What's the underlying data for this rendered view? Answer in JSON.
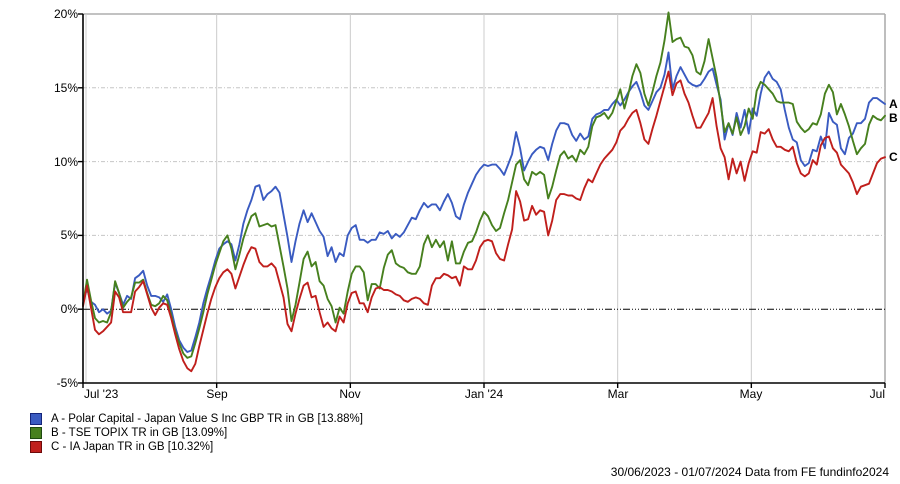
{
  "footer": {
    "text": "30/06/2023 - 01/07/2024 Data from FE fundinfo2024"
  },
  "chart_data": {
    "type": "line",
    "title": "",
    "date_range": {
      "start": "30/06/2023",
      "end": "01/07/2024"
    },
    "sampling": "201 uniform samples per series across the date range, values in percent total return",
    "grid": {
      "horizontal": "dashed",
      "vertical": "solid",
      "zero_line": "black dash-dot"
    },
    "legend_position": "bottom-left",
    "x_axis": {
      "ticks": [
        "Jul '23",
        "Sep",
        "Nov",
        "Jan '24",
        "Mar",
        "May",
        "Jul"
      ]
    },
    "y_axis": {
      "ticks": [
        "20%",
        "15%",
        "10%",
        "5%",
        "0%",
        "-5%"
      ],
      "tick_values": [
        20,
        15,
        10,
        5,
        0,
        -5
      ],
      "min": -5,
      "max": 20
    },
    "series": [
      {
        "id": "A",
        "end_label": "A",
        "label": "A - Polar Capital - Japan Value S Inc GBP TR in GB [13.88%]",
        "final_value_pct": 13.88,
        "color": "#3a5bc1",
        "swatch_border": "#14247a",
        "values": [
          0.4,
          1.4,
          0.5,
          0.3,
          -0.2,
          0.0,
          -0.3,
          -0.1,
          1.8,
          1.1,
          0.3,
          0.9,
          0.7,
          2.1,
          2.3,
          2.6,
          1.6,
          0.9,
          0.9,
          0.8,
          0.5,
          1.0,
          0.0,
          -1.2,
          -2.1,
          -2.6,
          -2.9,
          -2.8,
          -1.9,
          -0.9,
          0.4,
          1.4,
          2.3,
          3.3,
          4.1,
          4.4,
          4.6,
          4.4,
          3.3,
          4.4,
          5.8,
          6.7,
          7.4,
          8.3,
          8.4,
          7.4,
          7.8,
          8.0,
          8.3,
          7.9,
          6.4,
          4.9,
          3.2,
          4.6,
          5.8,
          6.7,
          5.9,
          6.5,
          5.9,
          5.3,
          4.9,
          3.6,
          4.2,
          3.2,
          3.8,
          3.6,
          5.0,
          5.5,
          5.7,
          4.7,
          4.7,
          4.5,
          4.7,
          4.7,
          5.2,
          5.1,
          5.3,
          4.8,
          5.1,
          4.9,
          5.2,
          5.7,
          6.2,
          6.1,
          6.7,
          7.2,
          6.9,
          7.1,
          7.1,
          6.7,
          7.3,
          7.8,
          7.2,
          6.3,
          6.1,
          7.1,
          7.9,
          8.5,
          9.1,
          9.5,
          9.8,
          9.7,
          9.8,
          9.8,
          9.5,
          9.1,
          9.8,
          10.5,
          12.0,
          10.9,
          9.4,
          10.0,
          10.5,
          10.8,
          11.0,
          10.9,
          10.1,
          11.2,
          12.1,
          12.6,
          12.6,
          12.5,
          11.8,
          11.4,
          11.9,
          11.5,
          11.7,
          12.9,
          13.2,
          13.3,
          13.5,
          13.5,
          13.9,
          14.2,
          13.8,
          14.2,
          14.7,
          15.1,
          15.4,
          14.7,
          13.8,
          13.5,
          14.1,
          14.7,
          15.0,
          15.9,
          17.4,
          14.9,
          15.8,
          16.4,
          15.9,
          15.4,
          15.2,
          15.1,
          15.2,
          15.6,
          16.1,
          16.3,
          15.2,
          14.2,
          11.5,
          12.6,
          11.8,
          13.3,
          12.3,
          13.5,
          11.9,
          13.6,
          13.1,
          14.6,
          15.7,
          16.1,
          15.6,
          15.4,
          14.9,
          13.5,
          12.3,
          11.5,
          11.3,
          10.1,
          9.7,
          9.9,
          10.8,
          10.7,
          11.7,
          10.9,
          13.3,
          12.7,
          12.5,
          10.9,
          10.5,
          11.6,
          11.9,
          12.6,
          12.6,
          12.9,
          14.0,
          14.3,
          14.3,
          14.1,
          13.9
        ]
      },
      {
        "id": "B",
        "end_label": "B",
        "label": "B - TSE TOPIX TR in GB [13.09%]",
        "final_value_pct": 13.09,
        "color": "#47801e",
        "swatch_border": "#1e4a10",
        "values": [
          0.3,
          2.0,
          0.6,
          -0.6,
          -0.9,
          -0.8,
          -0.9,
          -0.2,
          1.9,
          1.1,
          0.1,
          0.5,
          0.8,
          1.8,
          1.8,
          2.0,
          1.1,
          0.3,
          0.2,
          0.4,
          0.9,
          0.6,
          -0.4,
          -1.5,
          -2.3,
          -3.0,
          -3.3,
          -3.2,
          -2.3,
          -1.3,
          -0.2,
          1.0,
          2.0,
          3.0,
          3.8,
          4.6,
          5.0,
          4.1,
          2.7,
          3.7,
          4.8,
          5.6,
          6.3,
          6.5,
          5.6,
          5.7,
          5.8,
          5.6,
          5.7,
          4.3,
          2.9,
          1.4,
          -0.8,
          0.3,
          1.8,
          3.4,
          3.9,
          2.9,
          3.2,
          1.9,
          1.6,
          0.7,
          0.2,
          -0.9,
          0.1,
          -0.3,
          1.2,
          2.4,
          2.9,
          2.9,
          2.5,
          0.6,
          1.7,
          1.7,
          1.4,
          2.8,
          3.7,
          4.0,
          3.1,
          2.9,
          2.8,
          2.5,
          2.4,
          2.4,
          2.9,
          4.4,
          5.0,
          4.2,
          4.7,
          4.2,
          4.6,
          3.3,
          4.6,
          3.1,
          3.1,
          3.9,
          4.5,
          4.6,
          5.2,
          6.0,
          6.6,
          6.3,
          5.7,
          5.3,
          5.5,
          6.5,
          7.4,
          8.6,
          9.8,
          10.1,
          8.8,
          8.4,
          9.3,
          9.1,
          9.3,
          9.1,
          7.5,
          8.3,
          9.4,
          10.4,
          10.7,
          10.2,
          10.4,
          10.0,
          10.8,
          10.5,
          11.0,
          12.4,
          13.0,
          13.1,
          13.3,
          12.9,
          13.3,
          14.1,
          14.9,
          13.6,
          14.6,
          15.8,
          16.6,
          16.0,
          14.6,
          13.8,
          14.7,
          15.8,
          16.7,
          18.2,
          20.1,
          18.1,
          18.3,
          18.4,
          17.8,
          17.7,
          17.2,
          16.1,
          15.9,
          16.8,
          18.3,
          17.0,
          15.7,
          13.9,
          12.0,
          12.6,
          11.9,
          13.0,
          11.8,
          12.4,
          13.6,
          12.9,
          14.8,
          15.4,
          15.2,
          14.9,
          14.6,
          14.1,
          14.0,
          14.0,
          14.0,
          13.9,
          12.7,
          12.3,
          12.0,
          12.2,
          12.6,
          12.5,
          13.2,
          14.6,
          15.2,
          14.7,
          13.2,
          13.9,
          13.2,
          12.4,
          11.4,
          10.5,
          10.9,
          11.2,
          12.5,
          13.1,
          12.9,
          12.8,
          13.1
        ]
      },
      {
        "id": "C",
        "end_label": "C",
        "label": "C - IA Japan TR in GB [10.32%]",
        "final_value_pct": 10.32,
        "color": "#c01f1c",
        "swatch_border": "#6e0a0a",
        "values": [
          0.2,
          1.6,
          0.1,
          -1.4,
          -1.7,
          -1.5,
          -1.2,
          -0.9,
          1.2,
          0.8,
          -0.2,
          -0.2,
          -0.2,
          1.2,
          1.5,
          1.9,
          1.0,
          0.1,
          -0.4,
          0.1,
          0.4,
          0.3,
          -0.6,
          -1.7,
          -2.7,
          -3.5,
          -4.0,
          -4.2,
          -3.7,
          -2.5,
          -1.4,
          -0.3,
          0.7,
          1.5,
          2.1,
          2.5,
          2.7,
          2.4,
          1.4,
          2.2,
          3.0,
          3.7,
          4.2,
          4.1,
          3.2,
          2.9,
          2.9,
          3.1,
          2.8,
          1.8,
          0.8,
          -1.0,
          -1.5,
          -0.3,
          0.7,
          1.6,
          1.8,
          0.8,
          0.9,
          -0.2,
          -1.2,
          -0.9,
          -1.3,
          -1.5,
          -0.5,
          -0.9,
          0.4,
          1.1,
          1.2,
          0.4,
          0.4,
          -0.2,
          0.8,
          1.4,
          1.5,
          1.3,
          1.3,
          1.2,
          1.0,
          0.9,
          0.6,
          0.5,
          0.7,
          0.8,
          0.7,
          0.4,
          0.3,
          1.6,
          2.1,
          2.1,
          2.4,
          2.3,
          2.1,
          2.2,
          1.6,
          2.9,
          2.7,
          2.7,
          3.3,
          4.2,
          4.6,
          4.7,
          4.6,
          3.8,
          3.4,
          3.3,
          4.4,
          5.4,
          8.0,
          7.3,
          6.0,
          6.1,
          7.0,
          6.4,
          6.7,
          6.6,
          5.0,
          6.0,
          7.4,
          7.8,
          7.8,
          7.7,
          7.7,
          7.5,
          7.4,
          8.2,
          8.8,
          8.6,
          9.2,
          9.8,
          10.2,
          10.5,
          10.8,
          11.3,
          12.1,
          12.4,
          12.9,
          13.3,
          13.5,
          12.6,
          11.5,
          11.2,
          12.2,
          13.1,
          14.1,
          15.1,
          16.1,
          14.5,
          15.3,
          15.5,
          14.6,
          14.0,
          13.1,
          12.3,
          12.3,
          12.8,
          13.3,
          14.3,
          12.4,
          10.9,
          10.3,
          8.8,
          10.2,
          9.2,
          10.0,
          8.7,
          9.9,
          10.7,
          10.6,
          12.0,
          11.9,
          12.2,
          11.5,
          11.0,
          11.0,
          10.8,
          10.7,
          11.0,
          9.9,
          9.2,
          9.0,
          9.2,
          10.1,
          9.8,
          11.1,
          11.6,
          11.7,
          10.9,
          10.6,
          9.8,
          9.5,
          9.2,
          8.6,
          7.8,
          8.3,
          8.4,
          8.5,
          9.2,
          9.9,
          10.2,
          10.3
        ]
      }
    ]
  }
}
